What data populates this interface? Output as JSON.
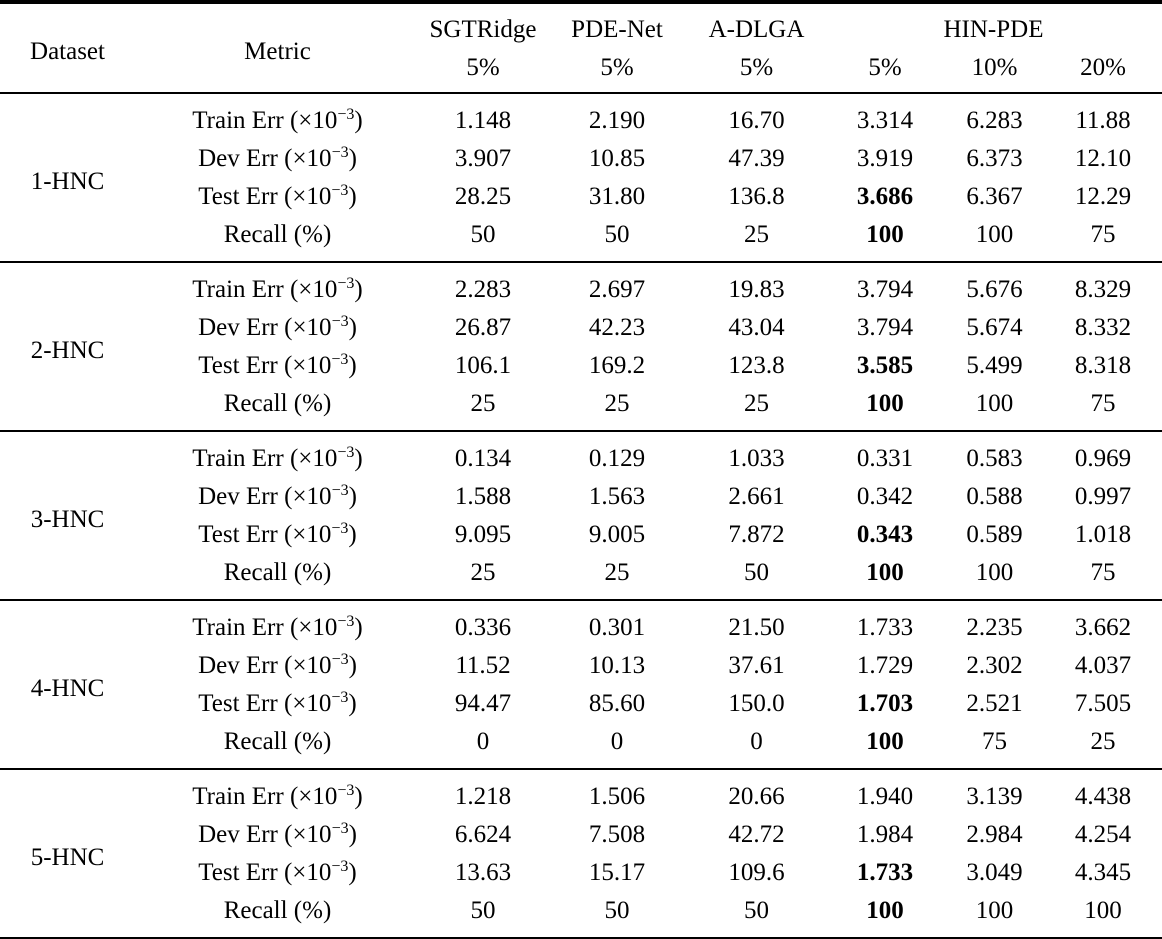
{
  "table": {
    "header": {
      "dataset": "Dataset",
      "metric": "Metric",
      "groups": [
        {
          "name": "SGTRidge",
          "subs": [
            "5%"
          ]
        },
        {
          "name": "PDE-Net",
          "subs": [
            "5%"
          ]
        },
        {
          "name": "A-DLGA",
          "subs": [
            "5%"
          ]
        },
        {
          "name": "HIN-PDE",
          "subs": [
            "5%",
            "10%",
            "20%"
          ]
        }
      ]
    },
    "metric_labels": [
      {
        "prefix": "Train Err (×10",
        "sup": "−3",
        "suffix": ")"
      },
      {
        "prefix": "Dev Err (×10",
        "sup": "−3",
        "suffix": ")"
      },
      {
        "prefix": "Test Err (×10",
        "sup": "−3",
        "suffix": ")"
      },
      {
        "prefix": "Recall (%)",
        "sup": "",
        "suffix": ""
      }
    ],
    "blocks": [
      {
        "dataset": "1-HNC",
        "rows": [
          {
            "values": [
              "1.148",
              "2.190",
              "16.70",
              "3.314",
              "6.283",
              "11.88"
            ],
            "bold_cols": []
          },
          {
            "values": [
              "3.907",
              "10.85",
              "47.39",
              "3.919",
              "6.373",
              "12.10"
            ],
            "bold_cols": []
          },
          {
            "values": [
              "28.25",
              "31.80",
              "136.8",
              "3.686",
              "6.367",
              "12.29"
            ],
            "bold_cols": [
              3
            ]
          },
          {
            "values": [
              "50",
              "50",
              "25",
              "100",
              "100",
              "75"
            ],
            "bold_cols": [
              3
            ]
          }
        ]
      },
      {
        "dataset": "2-HNC",
        "rows": [
          {
            "values": [
              "2.283",
              "2.697",
              "19.83",
              "3.794",
              "5.676",
              "8.329"
            ],
            "bold_cols": []
          },
          {
            "values": [
              "26.87",
              "42.23",
              "43.04",
              "3.794",
              "5.674",
              "8.332"
            ],
            "bold_cols": []
          },
          {
            "values": [
              "106.1",
              "169.2",
              "123.8",
              "3.585",
              "5.499",
              "8.318"
            ],
            "bold_cols": [
              3
            ]
          },
          {
            "values": [
              "25",
              "25",
              "25",
              "100",
              "100",
              "75"
            ],
            "bold_cols": [
              3
            ]
          }
        ]
      },
      {
        "dataset": "3-HNC",
        "rows": [
          {
            "values": [
              "0.134",
              "0.129",
              "1.033",
              "0.331",
              "0.583",
              "0.969"
            ],
            "bold_cols": []
          },
          {
            "values": [
              "1.588",
              "1.563",
              "2.661",
              "0.342",
              "0.588",
              "0.997"
            ],
            "bold_cols": []
          },
          {
            "values": [
              "9.095",
              "9.005",
              "7.872",
              "0.343",
              "0.589",
              "1.018"
            ],
            "bold_cols": [
              3
            ]
          },
          {
            "values": [
              "25",
              "25",
              "50",
              "100",
              "100",
              "75"
            ],
            "bold_cols": [
              3
            ]
          }
        ]
      },
      {
        "dataset": "4-HNC",
        "rows": [
          {
            "values": [
              "0.336",
              "0.301",
              "21.50",
              "1.733",
              "2.235",
              "3.662"
            ],
            "bold_cols": []
          },
          {
            "values": [
              "11.52",
              "10.13",
              "37.61",
              "1.729",
              "2.302",
              "4.037"
            ],
            "bold_cols": []
          },
          {
            "values": [
              "94.47",
              "85.60",
              "150.0",
              "1.703",
              "2.521",
              "7.505"
            ],
            "bold_cols": [
              3
            ]
          },
          {
            "values": [
              "0",
              "0",
              "0",
              "100",
              "75",
              "25"
            ],
            "bold_cols": [
              3
            ]
          }
        ]
      },
      {
        "dataset": "5-HNC",
        "rows": [
          {
            "values": [
              "1.218",
              "1.506",
              "20.66",
              "1.940",
              "3.139",
              "4.438"
            ],
            "bold_cols": []
          },
          {
            "values": [
              "6.624",
              "7.508",
              "42.72",
              "1.984",
              "2.984",
              "4.254"
            ],
            "bold_cols": []
          },
          {
            "values": [
              "13.63",
              "15.17",
              "109.6",
              "1.733",
              "3.049",
              "4.345"
            ],
            "bold_cols": [
              3
            ]
          },
          {
            "values": [
              "50",
              "50",
              "50",
              "100",
              "100",
              "100"
            ],
            "bold_cols": [
              3
            ]
          }
        ]
      }
    ]
  }
}
